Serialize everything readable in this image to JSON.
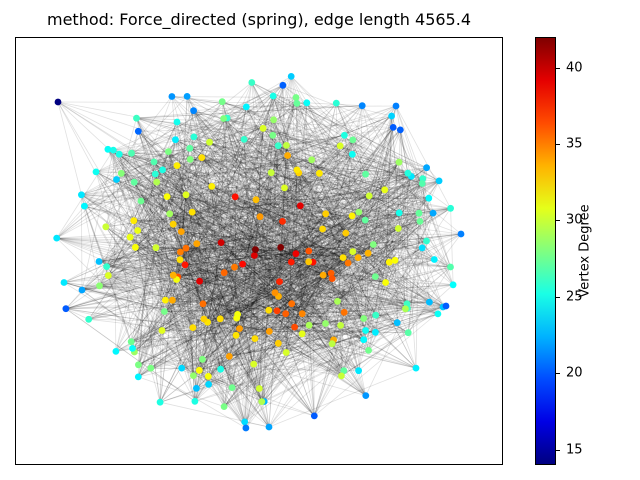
{
  "chart_data": {
    "type": "scatter",
    "title": "method: Force_directed (spring), edge length 4565.4",
    "colorbar": {
      "label": "Vertex Degree",
      "range": [
        14,
        42
      ],
      "ticks": [
        "15",
        "20",
        "25",
        "30",
        "35",
        "40"
      ],
      "colormap": "jet"
    },
    "node_degrees": [
      14,
      20,
      21,
      22,
      22,
      23,
      24,
      24,
      25,
      25,
      26,
      26,
      26,
      27,
      27,
      27,
      28,
      28,
      28,
      29,
      29,
      29,
      30,
      30,
      30,
      31,
      31,
      32,
      33,
      34,
      35,
      36,
      37,
      38,
      39,
      40,
      41,
      42
    ],
    "grid": false,
    "legend": "none"
  }
}
